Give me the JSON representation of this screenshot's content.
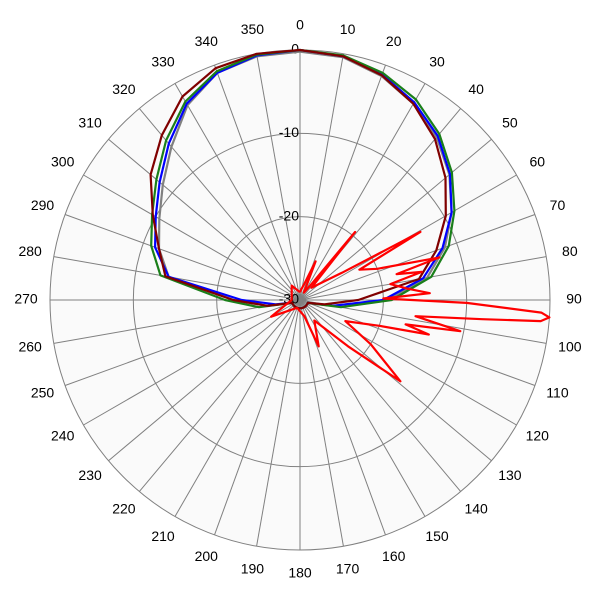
{
  "chart_data": {
    "type": "polar",
    "direction": "clockwise",
    "zero_at": "top",
    "rlim": [
      -30,
      0
    ],
    "rticks": [
      -30,
      -20,
      -10,
      0
    ],
    "thetaticks": [
      0,
      10,
      20,
      30,
      40,
      50,
      60,
      70,
      80,
      90,
      100,
      110,
      120,
      130,
      140,
      150,
      160,
      170,
      180,
      190,
      200,
      210,
      220,
      230,
      240,
      250,
      260,
      270,
      280,
      290,
      300,
      310,
      320,
      330,
      340,
      350
    ],
    "grid": true,
    "theta": [
      0,
      10,
      20,
      30,
      40,
      50,
      60,
      70,
      80,
      90,
      100,
      110,
      120,
      130,
      140,
      150,
      160,
      170,
      180,
      190,
      200,
      210,
      220,
      230,
      240,
      250,
      260,
      270,
      280,
      290,
      300,
      310,
      320,
      330,
      340,
      350
    ],
    "series": [
      {
        "color": "#808080",
        "values": [
          -0.2,
          -0.4,
          -1.4,
          -2.8,
          -4.5,
          -6.6,
          -9,
          -11.5,
          -14.5,
          -19.5,
          -26,
          -29,
          -29,
          -29,
          -29,
          -29,
          -29,
          -29,
          -29,
          -29,
          -29,
          -29,
          -29,
          -29,
          -29,
          -29,
          -26,
          -22,
          -14,
          -12,
          -10.5,
          -8.5,
          -6,
          -3,
          -1,
          -0.3
        ]
      },
      {
        "color": "#0000ff",
        "values": [
          0,
          -0.3,
          -1.2,
          -2.6,
          -4.3,
          -6.5,
          -9,
          -11.8,
          -15,
          -20,
          -26,
          -29,
          -29,
          -29,
          -29,
          -29,
          -29,
          -29,
          -29,
          -29,
          -29,
          -29,
          -29,
          -29,
          -29,
          -29,
          -27,
          -23,
          -14,
          -11.5,
          -10,
          -8,
          -5.5,
          -2.8,
          -1,
          -0.2
        ]
      },
      {
        "color": "#1a7f1a",
        "values": [
          0,
          -0.2,
          -1,
          -2.2,
          -4,
          -6.2,
          -8.6,
          -11,
          -14,
          -19,
          -25,
          -29,
          -29,
          -29,
          -29,
          -29,
          -29,
          -29,
          -29,
          -29,
          -29,
          -29,
          -29,
          -29,
          -29,
          -29,
          -25,
          -21,
          -13,
          -11,
          -9.5,
          -7.5,
          -5,
          -2.5,
          -0.8,
          -0.1
        ]
      },
      {
        "color": "#800000",
        "values": [
          0,
          -0.3,
          -1.3,
          -2.8,
          -4.8,
          -7.2,
          -9.8,
          -12.6,
          -15.5,
          -23,
          -27,
          -29,
          -29,
          -29,
          -29,
          -29,
          -29,
          -29,
          -29,
          -29,
          -29,
          -29,
          -29,
          -29,
          -29,
          -29,
          -26,
          -22,
          -13.6,
          -12,
          -9.6,
          -6.6,
          -4.2,
          -1.8,
          -0.4,
          0
        ]
      },
      {
        "color": "#ff0000",
        "theta": [
          0,
          15,
          22,
          28,
          35,
          39,
          43,
          50,
          57,
          60.5,
          63,
          68,
          73,
          75,
          77,
          80,
          84,
          87,
          89,
          91,
          93,
          94,
          95,
          96,
          98,
          101,
          103,
          105,
          108,
          115,
          122,
          129,
          134,
          145,
          158,
          165,
          200,
          240,
          270,
          330,
          355
        ],
        "values": [
          -29,
          -28,
          -25,
          -29,
          -28,
          -19.5,
          -28,
          -27,
          -24,
          -13.4,
          -22,
          -20,
          -12.5,
          -18,
          -15,
          -19,
          -17,
          -14.4,
          -20,
          -10,
          -1,
          0,
          -1,
          -8,
          -16,
          -10.4,
          -17,
          -14,
          -20,
          -24,
          -20,
          -14.5,
          -22,
          -27,
          -24,
          -28,
          -29,
          -26,
          -29,
          -28,
          -29
        ]
      }
    ]
  }
}
